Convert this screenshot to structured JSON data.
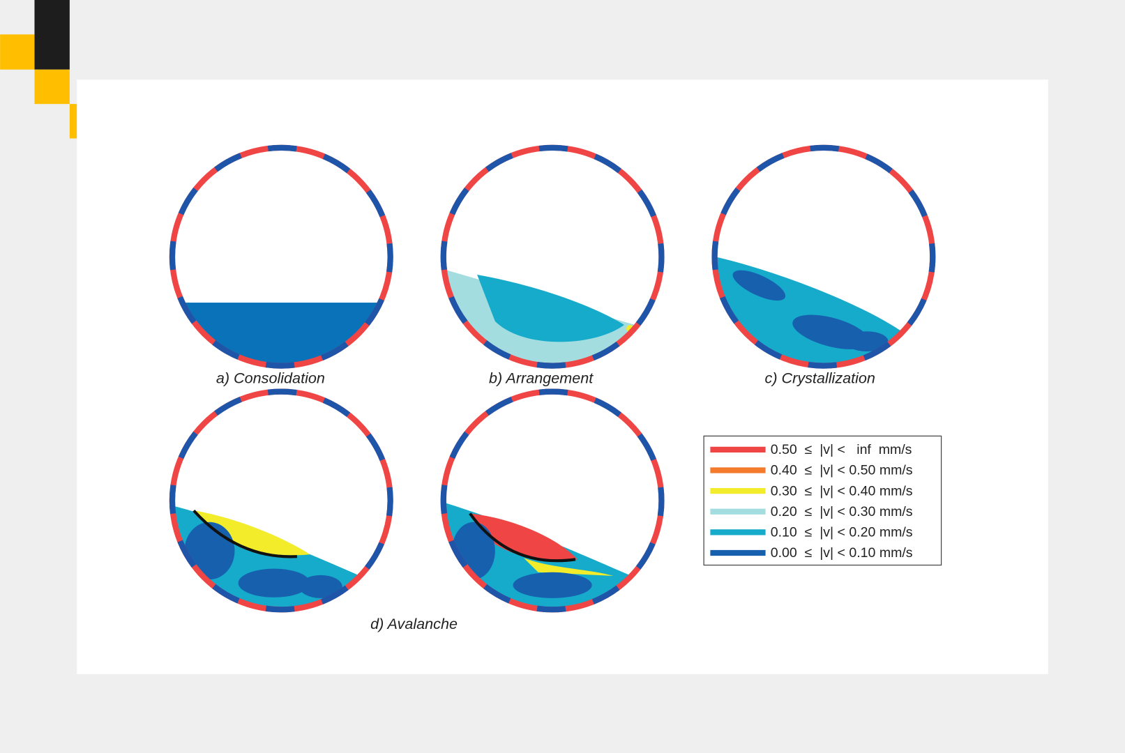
{
  "figure": {
    "captions": [
      "a) Consolidation",
      "b) Arrangement",
      "c) Crystallization",
      "d) Avalanche"
    ],
    "legend": [
      {
        "label": "0.50  ≤  |v| <   inf  mm/s",
        "color": "#f04545"
      },
      {
        "label": "0.40  ≤  |v| < 0.50 mm/s",
        "color": "#f47a2c"
      },
      {
        "label": "0.30  ≤  |v| < 0.40 mm/s",
        "color": "#f2ec2a"
      },
      {
        "label": "0.20  ≤  |v| < 0.30 mm/s",
        "color": "#a3dde0"
      },
      {
        "label": "0.10  ≤  |v| < 0.20 mm/s",
        "color": "#16aacb"
      },
      {
        "label": "0.00  ≤  |v| < 0.10 mm/s",
        "color": "#1760ae"
      }
    ]
  }
}
